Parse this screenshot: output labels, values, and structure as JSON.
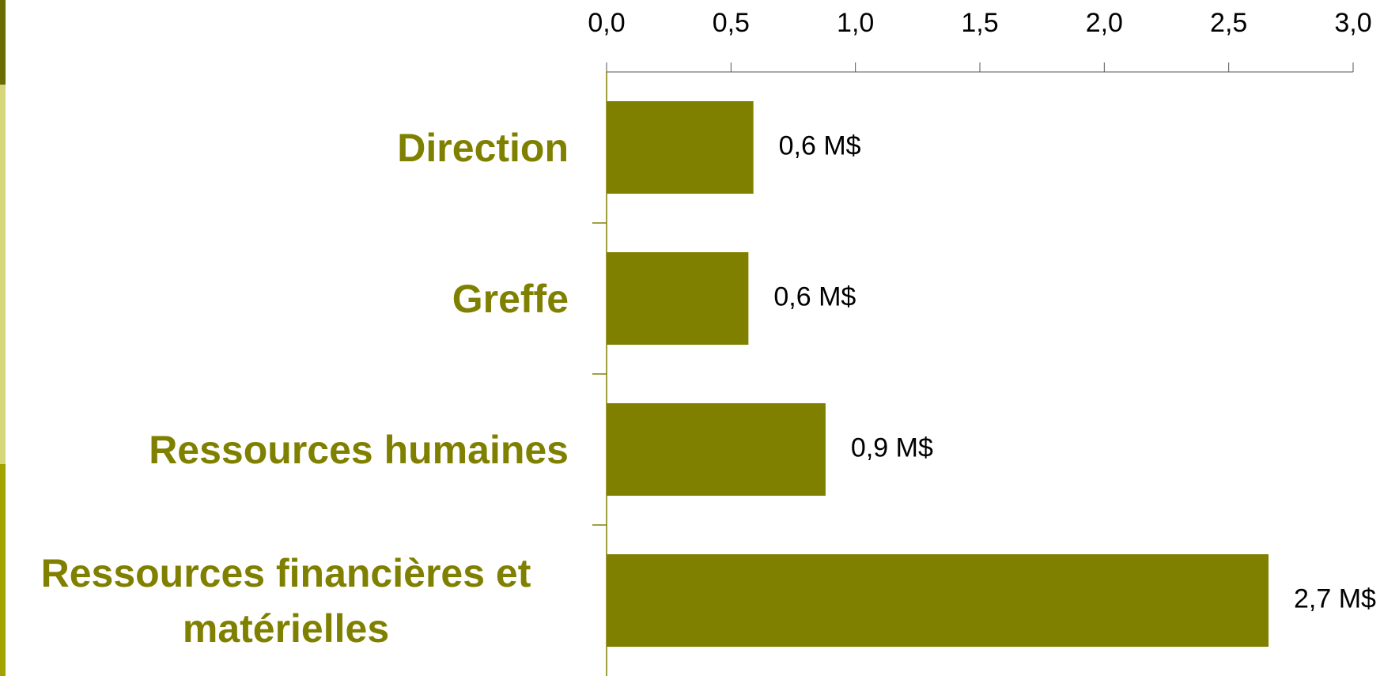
{
  "chart_data": {
    "type": "hbar",
    "categories": [
      "Direction",
      "Greffe",
      "Ressources humaines",
      "Ressources financières et matérielles"
    ],
    "values": [
      0.59,
      0.57,
      0.88,
      2.66
    ],
    "value_labels": [
      "0,6 M$",
      "0,6 M$",
      "0,9 M$",
      "2,7 M$"
    ],
    "color": "#808000",
    "xlim": [
      0,
      3
    ],
    "xticks": [
      {
        "value": 0,
        "label": "0,0"
      },
      {
        "value": 0.5,
        "label": "0,5"
      },
      {
        "value": 1,
        "label": "1,0"
      },
      {
        "value": 1.5,
        "label": "1,5"
      },
      {
        "value": 2,
        "label": "2,0"
      },
      {
        "value": 2.5,
        "label": "2,5"
      },
      {
        "value": 3,
        "label": "3,0"
      }
    ],
    "grid": false
  }
}
